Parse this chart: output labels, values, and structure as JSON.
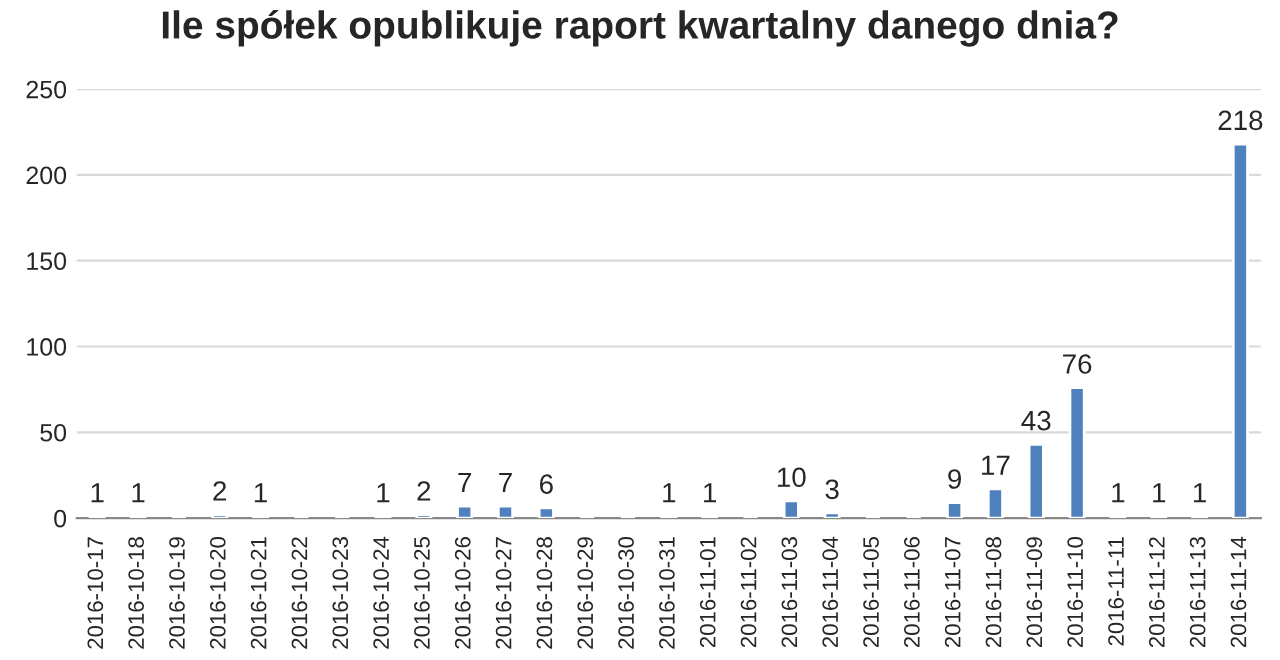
{
  "chart_data": {
    "type": "bar",
    "title": "Ile spółek opublikuje raport kwartalny danego dnia?",
    "categories": [
      "2016-10-17",
      "2016-10-18",
      "2016-10-19",
      "2016-10-20",
      "2016-10-21",
      "2016-10-22",
      "2016-10-23",
      "2016-10-24",
      "2016-10-25",
      "2016-10-26",
      "2016-10-27",
      "2016-10-28",
      "2016-10-29",
      "2016-10-30",
      "2016-10-31",
      "2016-11-01",
      "2016-11-02",
      "2016-11-03",
      "2016-11-04",
      "2016-11-05",
      "2016-11-06",
      "2016-11-07",
      "2016-11-08",
      "2016-11-09",
      "2016-11-10",
      "2016-11-11",
      "2016-11-12",
      "2016-11-13",
      "2016-11-14"
    ],
    "values": [
      1,
      1,
      null,
      2,
      1,
      null,
      null,
      1,
      2,
      7,
      7,
      6,
      null,
      null,
      1,
      1,
      null,
      10,
      3,
      null,
      null,
      9,
      17,
      43,
      76,
      1,
      1,
      1,
      218
    ],
    "value_labels": [
      "1",
      "1",
      null,
      "2",
      "1",
      null,
      null,
      "1",
      "2",
      "7",
      "7",
      "6",
      null,
      null,
      "1",
      "1",
      null,
      "10",
      "3",
      null,
      null,
      "9",
      "17",
      "43",
      "76",
      "1",
      "1",
      "1",
      "218"
    ],
    "color": "#4f81bd",
    "ylim": [
      0,
      250
    ],
    "yticks": [
      0,
      50,
      100,
      150,
      200,
      250
    ],
    "grid": "y",
    "legend": false
  }
}
